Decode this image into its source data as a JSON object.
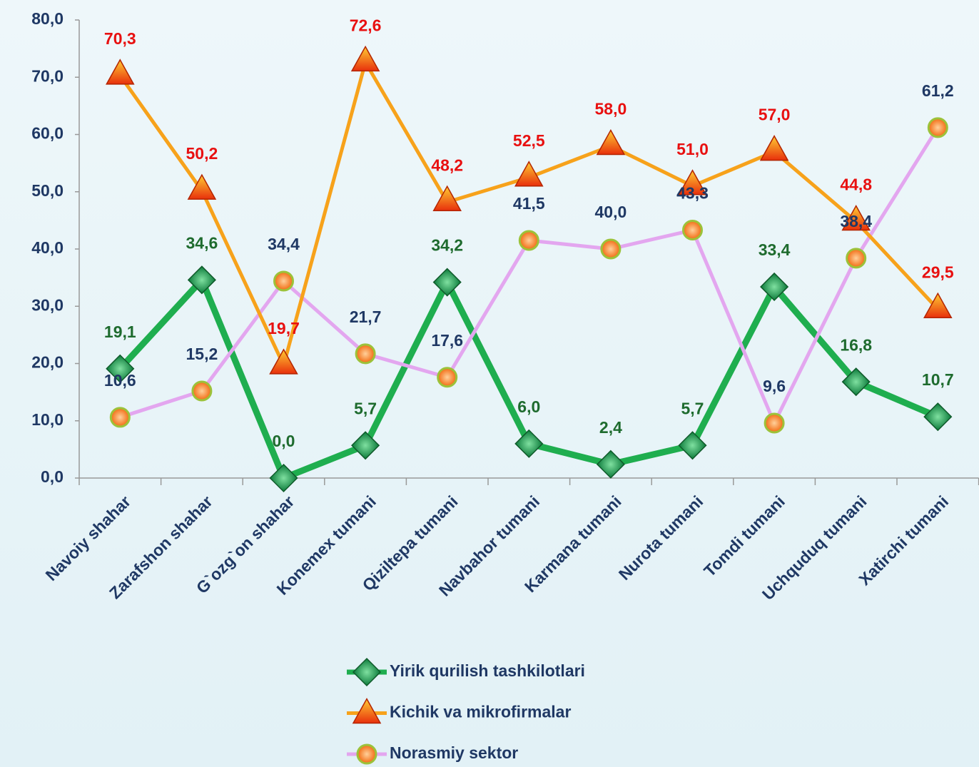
{
  "chart_data": {
    "type": "line",
    "categories": [
      "Navoiy shahar",
      "Zarafshon shahar",
      "G`ozg`on shahar",
      "Konemex tumani",
      "Qiziltepa tumani",
      "Navbahor tumani",
      "Karmana tumani",
      "Nurota tumani",
      "Tomdi tumani",
      "Uchquduq tumani",
      "Xatirchi tumani"
    ],
    "series": [
      {
        "name": "Yirik qurilish tashkilotlari",
        "color": "#1fae4f",
        "marker": "diamond",
        "label_color": "#1e6b2e",
        "values": [
          19.1,
          34.6,
          0,
          5.7,
          34.2,
          6.0,
          2.4,
          5.7,
          33.4,
          16.8,
          10.7
        ],
        "value_labels": [
          "19,1",
          "34,6",
          "0,0",
          "5,7",
          "34,2",
          "6,0",
          "2,4",
          "5,7",
          "33,4",
          "16,8",
          "10,7"
        ]
      },
      {
        "name": "Kichik va mikrofirmalar",
        "color": "#f7a21b",
        "marker": "triangle",
        "label_color": "#e81010",
        "values": [
          70.3,
          50.2,
          19.7,
          72.6,
          48.2,
          52.5,
          58.0,
          51.0,
          57.0,
          44.8,
          29.5
        ],
        "value_labels": [
          "70,3",
          "50,2",
          "19,7",
          "72,6",
          "48,2",
          "52,5",
          "58,0",
          "51,0",
          "57,0",
          "44,8",
          "29,5"
        ]
      },
      {
        "name": "Norasmiy sektor",
        "color": "#e3a6ef",
        "marker": "circle",
        "label_color": "#1f3864",
        "values": [
          10.6,
          15.2,
          34.4,
          21.7,
          17.6,
          41.5,
          40.0,
          43.3,
          9.6,
          38.4,
          61.2
        ],
        "value_labels": [
          "10,6",
          "15,2",
          "34,4",
          "21,7",
          "17,6",
          "41,5",
          "40,0",
          "43,3",
          "9,6",
          "38,4",
          "61,2"
        ]
      }
    ],
    "ylim": [
      0,
      80
    ],
    "yticks": [
      {
        "value": 0,
        "label": "0,0"
      },
      {
        "value": 10,
        "label": "10,0"
      },
      {
        "value": 20,
        "label": "20,0"
      },
      {
        "value": 30,
        "label": "30,0"
      },
      {
        "value": 40,
        "label": "40,0"
      },
      {
        "value": 50,
        "label": "50,0"
      },
      {
        "value": 60,
        "label": "60,0"
      },
      {
        "value": 70,
        "label": "70,0"
      },
      {
        "value": 80,
        "label": "80,0"
      }
    ],
    "grid": false,
    "legend": "bottom"
  }
}
